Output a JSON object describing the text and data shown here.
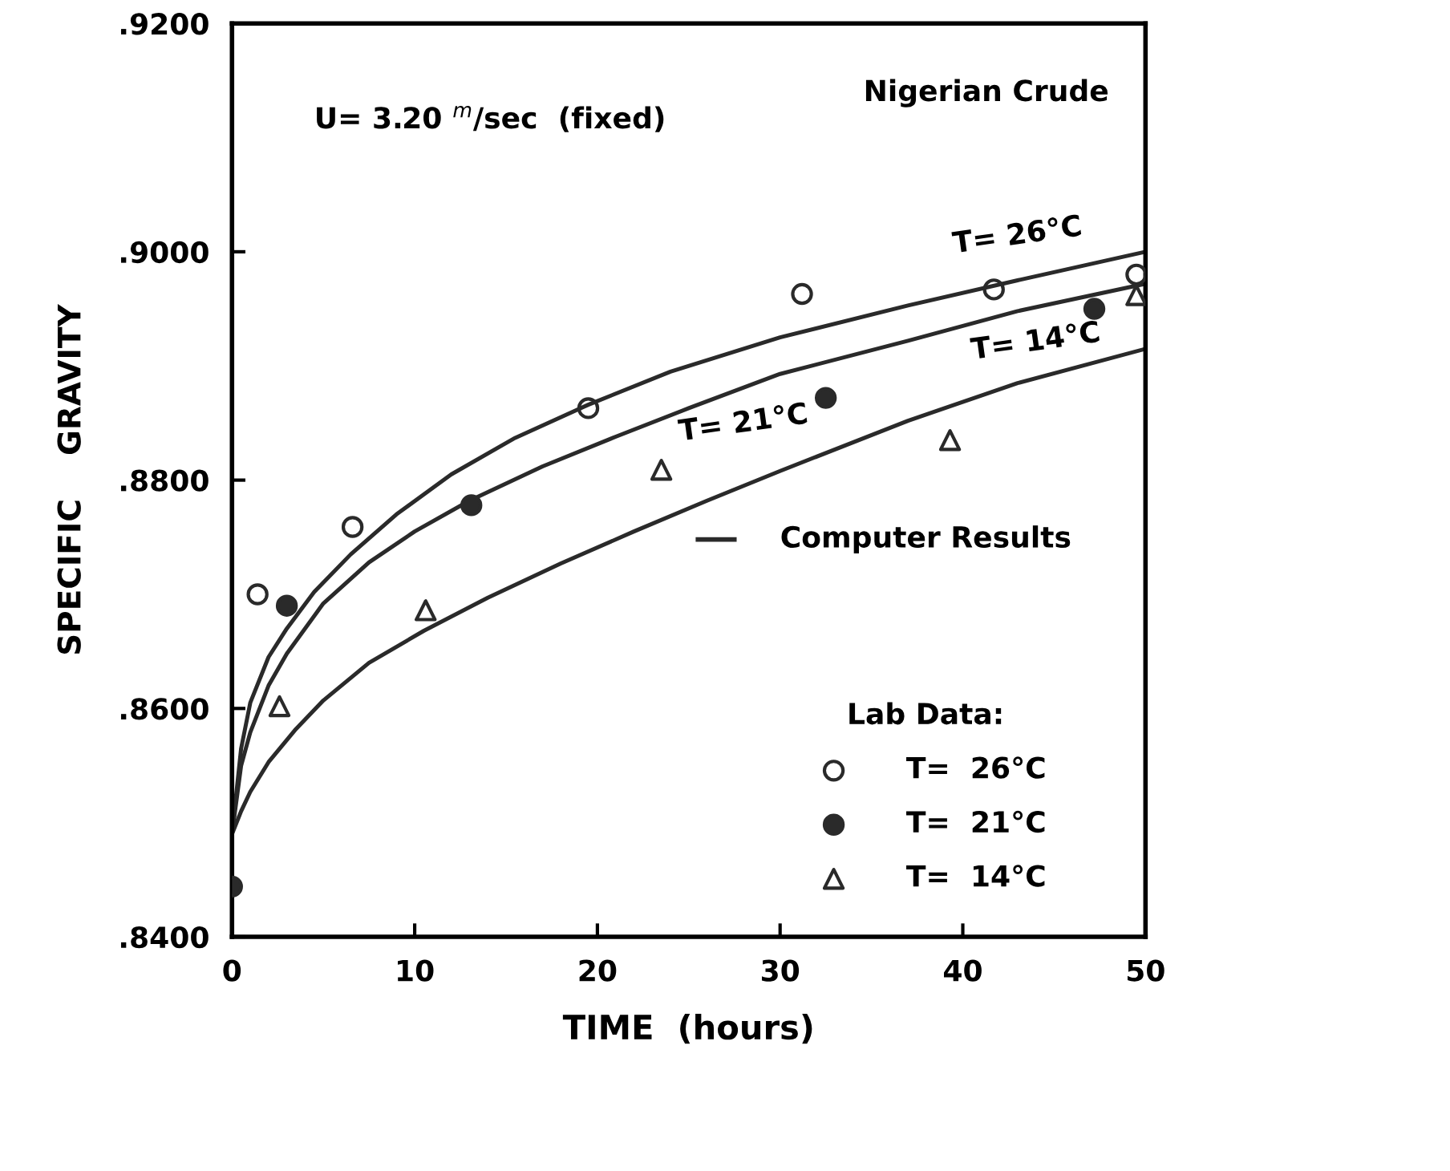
{
  "chart_data": {
    "type": "scatter",
    "xlabel": "TIME  (hours)",
    "ylabel": "SPECIFIC    GRAVITY",
    "xlim": [
      0,
      50
    ],
    "ylim": [
      0.84,
      0.92
    ],
    "xticks": [
      0,
      10,
      20,
      30,
      40,
      50
    ],
    "yticks": [
      {
        "value": 0.84,
        "label": ".8400"
      },
      {
        "value": 0.86,
        "label": ".8600"
      },
      {
        "value": 0.88,
        "label": ".8800"
      },
      {
        "value": 0.9,
        "label": ".9000"
      },
      {
        "value": 0.92,
        "label": ".9200"
      }
    ],
    "grid": false,
    "legend": "bottom right",
    "legend_title": "Lab Data:",
    "annotations": [
      "U= 3.20 $^{m}$/sec  (fixed)",
      "Nigerian Crude",
      "Computer Results",
      {
        "text": "T= 26°C",
        "x": 43,
        "y": 0.8978
      },
      {
        "text": "T= 21°C",
        "x": 28,
        "y": 0.8885
      },
      {
        "text": "T= 14°C",
        "x": 44,
        "y": 0.8885
      }
    ],
    "series": [
      {
        "type": "line",
        "color": "#2a2a2a",
        "marker": "none",
        "line_style": "solid",
        "x": [
          0,
          0.5,
          1,
          2,
          3,
          4.5,
          6.5,
          9,
          12,
          15.5,
          19.5,
          24,
          30,
          37,
          43,
          50
        ],
        "values": [
          0.849,
          0.8565,
          0.8605,
          0.8645,
          0.867,
          0.8702,
          0.8735,
          0.877,
          0.8805,
          0.8837,
          0.8866,
          0.8895,
          0.8925,
          0.8953,
          0.8975,
          0.9
        ]
      },
      {
        "type": "line",
        "color": "#2a2a2a",
        "marker": "none",
        "line_style": "solid",
        "x": [
          0,
          0.5,
          1,
          2,
          3,
          5,
          7.5,
          10,
          13,
          17,
          21,
          25,
          30,
          37,
          43,
          50
        ],
        "values": [
          0.849,
          0.855,
          0.8579,
          0.862,
          0.8648,
          0.8692,
          0.8728,
          0.8755,
          0.8782,
          0.8812,
          0.8838,
          0.8863,
          0.8893,
          0.8922,
          0.8948,
          0.8972
        ]
      },
      {
        "type": "line",
        "color": "#2a2a2a",
        "marker": "none",
        "line_style": "solid",
        "x": [
          0,
          0.5,
          1,
          2,
          3.5,
          5,
          7.5,
          10.5,
          14,
          18,
          22,
          26,
          30,
          37,
          43,
          50
        ],
        "values": [
          0.849,
          0.851,
          0.8527,
          0.8553,
          0.8582,
          0.8607,
          0.864,
          0.8668,
          0.8697,
          0.8727,
          0.8755,
          0.8782,
          0.8808,
          0.8852,
          0.8885,
          0.8915
        ]
      },
      {
        "name": "T=  26°C",
        "color": "#2a2a2a",
        "marker": "circle",
        "x": [
          1.4,
          6.6,
          19.5,
          31.2,
          41.7,
          49.5
        ],
        "values": [
          0.87,
          0.8759,
          0.8863,
          0.8963,
          0.8967,
          0.898
        ]
      },
      {
        "name": "T=  21°C",
        "color": "#2a2a2a",
        "marker": "circle",
        "x": [
          0,
          3,
          13.1,
          32.5,
          47.2
        ],
        "values": [
          0.8444,
          0.869,
          0.8778,
          0.8872,
          0.895
        ]
      },
      {
        "name": "T=  14°C",
        "color": "#2a2a2a",
        "marker": "triangle",
        "x": [
          2.6,
          10.6,
          23.5,
          39.3,
          49.5
        ],
        "values": [
          0.8602,
          0.8686,
          0.8809,
          0.8835,
          0.8962
        ]
      }
    ]
  }
}
